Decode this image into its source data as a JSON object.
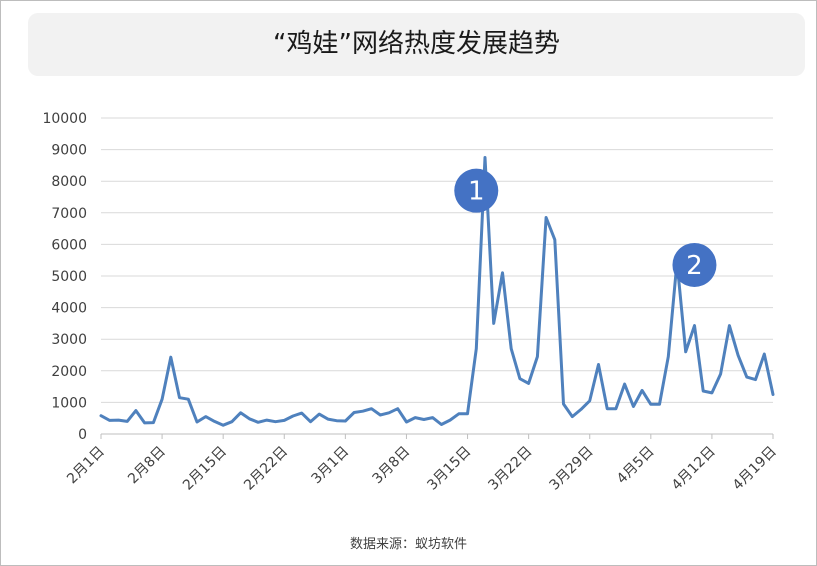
{
  "title": "“鸡娃”网络热度发展趋势",
  "source": "数据来源：蚁坊软件",
  "colors": {
    "line": "#4f81bd",
    "badge": "#4472c4",
    "grid": "#d9d9d9",
    "title_bg": "#f2f2f2"
  },
  "annotations": [
    {
      "label": "1",
      "x_index": 43,
      "y": 7700
    },
    {
      "label": "2",
      "x_index": 68,
      "y": 5350
    }
  ],
  "chart_data": {
    "type": "line",
    "title": "“鸡娃”网络热度发展趋势",
    "xlabel": "",
    "ylabel": "",
    "ylim": [
      0,
      10000
    ],
    "y_ticks": [
      0,
      1000,
      2000,
      3000,
      4000,
      5000,
      6000,
      7000,
      8000,
      9000,
      10000
    ],
    "x_tick_labels": [
      "2月1日",
      "2月8日",
      "2月15日",
      "2月22日",
      "3月1日",
      "3月8日",
      "3月15日",
      "3月22日",
      "3月29日",
      "4月5日",
      "4月12日",
      "4月19日"
    ],
    "x_tick_step_days": 7,
    "grid": true,
    "legend": "none",
    "series": [
      {
        "values": [
          580,
          430,
          440,
          400,
          740,
          350,
          360,
          1100,
          2430,
          1150,
          1100,
          380,
          550,
          400,
          280,
          390,
          670,
          480,
          370,
          440,
          390,
          430,
          570,
          660,
          390,
          630,
          470,
          420,
          410,
          680,
          720,
          800,
          600,
          670,
          800,
          380,
          520,
          460,
          520,
          300,
          440,
          640,
          640,
          2700,
          8750,
          3500,
          5100,
          2700,
          1750,
          1600,
          2450,
          6850,
          6150,
          950,
          550,
          780,
          1050,
          2200,
          800,
          800,
          1580,
          870,
          1380,
          940,
          940,
          2450,
          5450,
          2600,
          3430,
          1360,
          1300,
          1900,
          3430,
          2490,
          1800,
          1720,
          2530,
          1250
        ]
      }
    ]
  }
}
